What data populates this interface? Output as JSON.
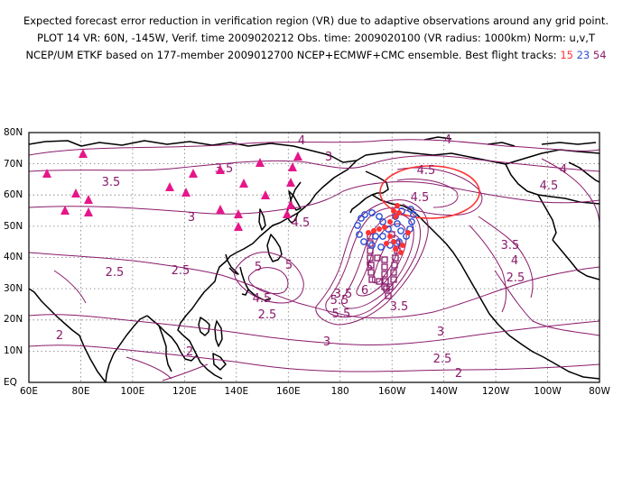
{
  "header": {
    "line1": "Expected forecast error reduction in verification region (VR) due to adaptive observations around any grid point.",
    "line2": "PLOT 14 VR: 60N, -145W, Verif. time 2009020212 Obs. time: 2009020100 (VR radius: 1000km) Norm: u,v,T",
    "line3_prefix": "NCEP/UM ETKF based on 177-member 2009012700 NCEP+ECMWF+CMC ensemble. Best flight tracks: ",
    "tracks": [
      {
        "label": "15",
        "color": "#ff3333"
      },
      {
        "label": "23",
        "color": "#2a4fd6"
      },
      {
        "label": "54",
        "color": "#8a1b6b"
      }
    ]
  },
  "axes": {
    "lat_labels": [
      "80N",
      "70N",
      "60N",
      "50N",
      "40N",
      "30N",
      "20N",
      "10N",
      "EQ"
    ],
    "lon_labels": [
      "60E",
      "80E",
      "100E",
      "120E",
      "140E",
      "160E",
      "180",
      "160W",
      "140W",
      "120W",
      "100W",
      "80W"
    ]
  },
  "colors": {
    "contour": "#8a1b6b",
    "coast": "#000000",
    "vr_circle": "#ff3333",
    "raob": "#e6168a",
    "track15": "#ff3333",
    "track23": "#2a4fd6",
    "track54": "#8a1b6b"
  },
  "contour_labels": [
    "4",
    "4",
    "4",
    "4",
    "3.5",
    "3.5",
    "3.5",
    "3.5",
    "3",
    "3",
    "3",
    "3",
    "2.5",
    "2.5",
    "2.5",
    "2.5",
    "2.5",
    "2",
    "2",
    "2",
    "5",
    "5",
    "5",
    "5.5",
    "5.5",
    "6",
    "4.5",
    "4.5",
    "4.5",
    "4.5",
    "4.5",
    "3.5"
  ],
  "raob_count": 21
}
